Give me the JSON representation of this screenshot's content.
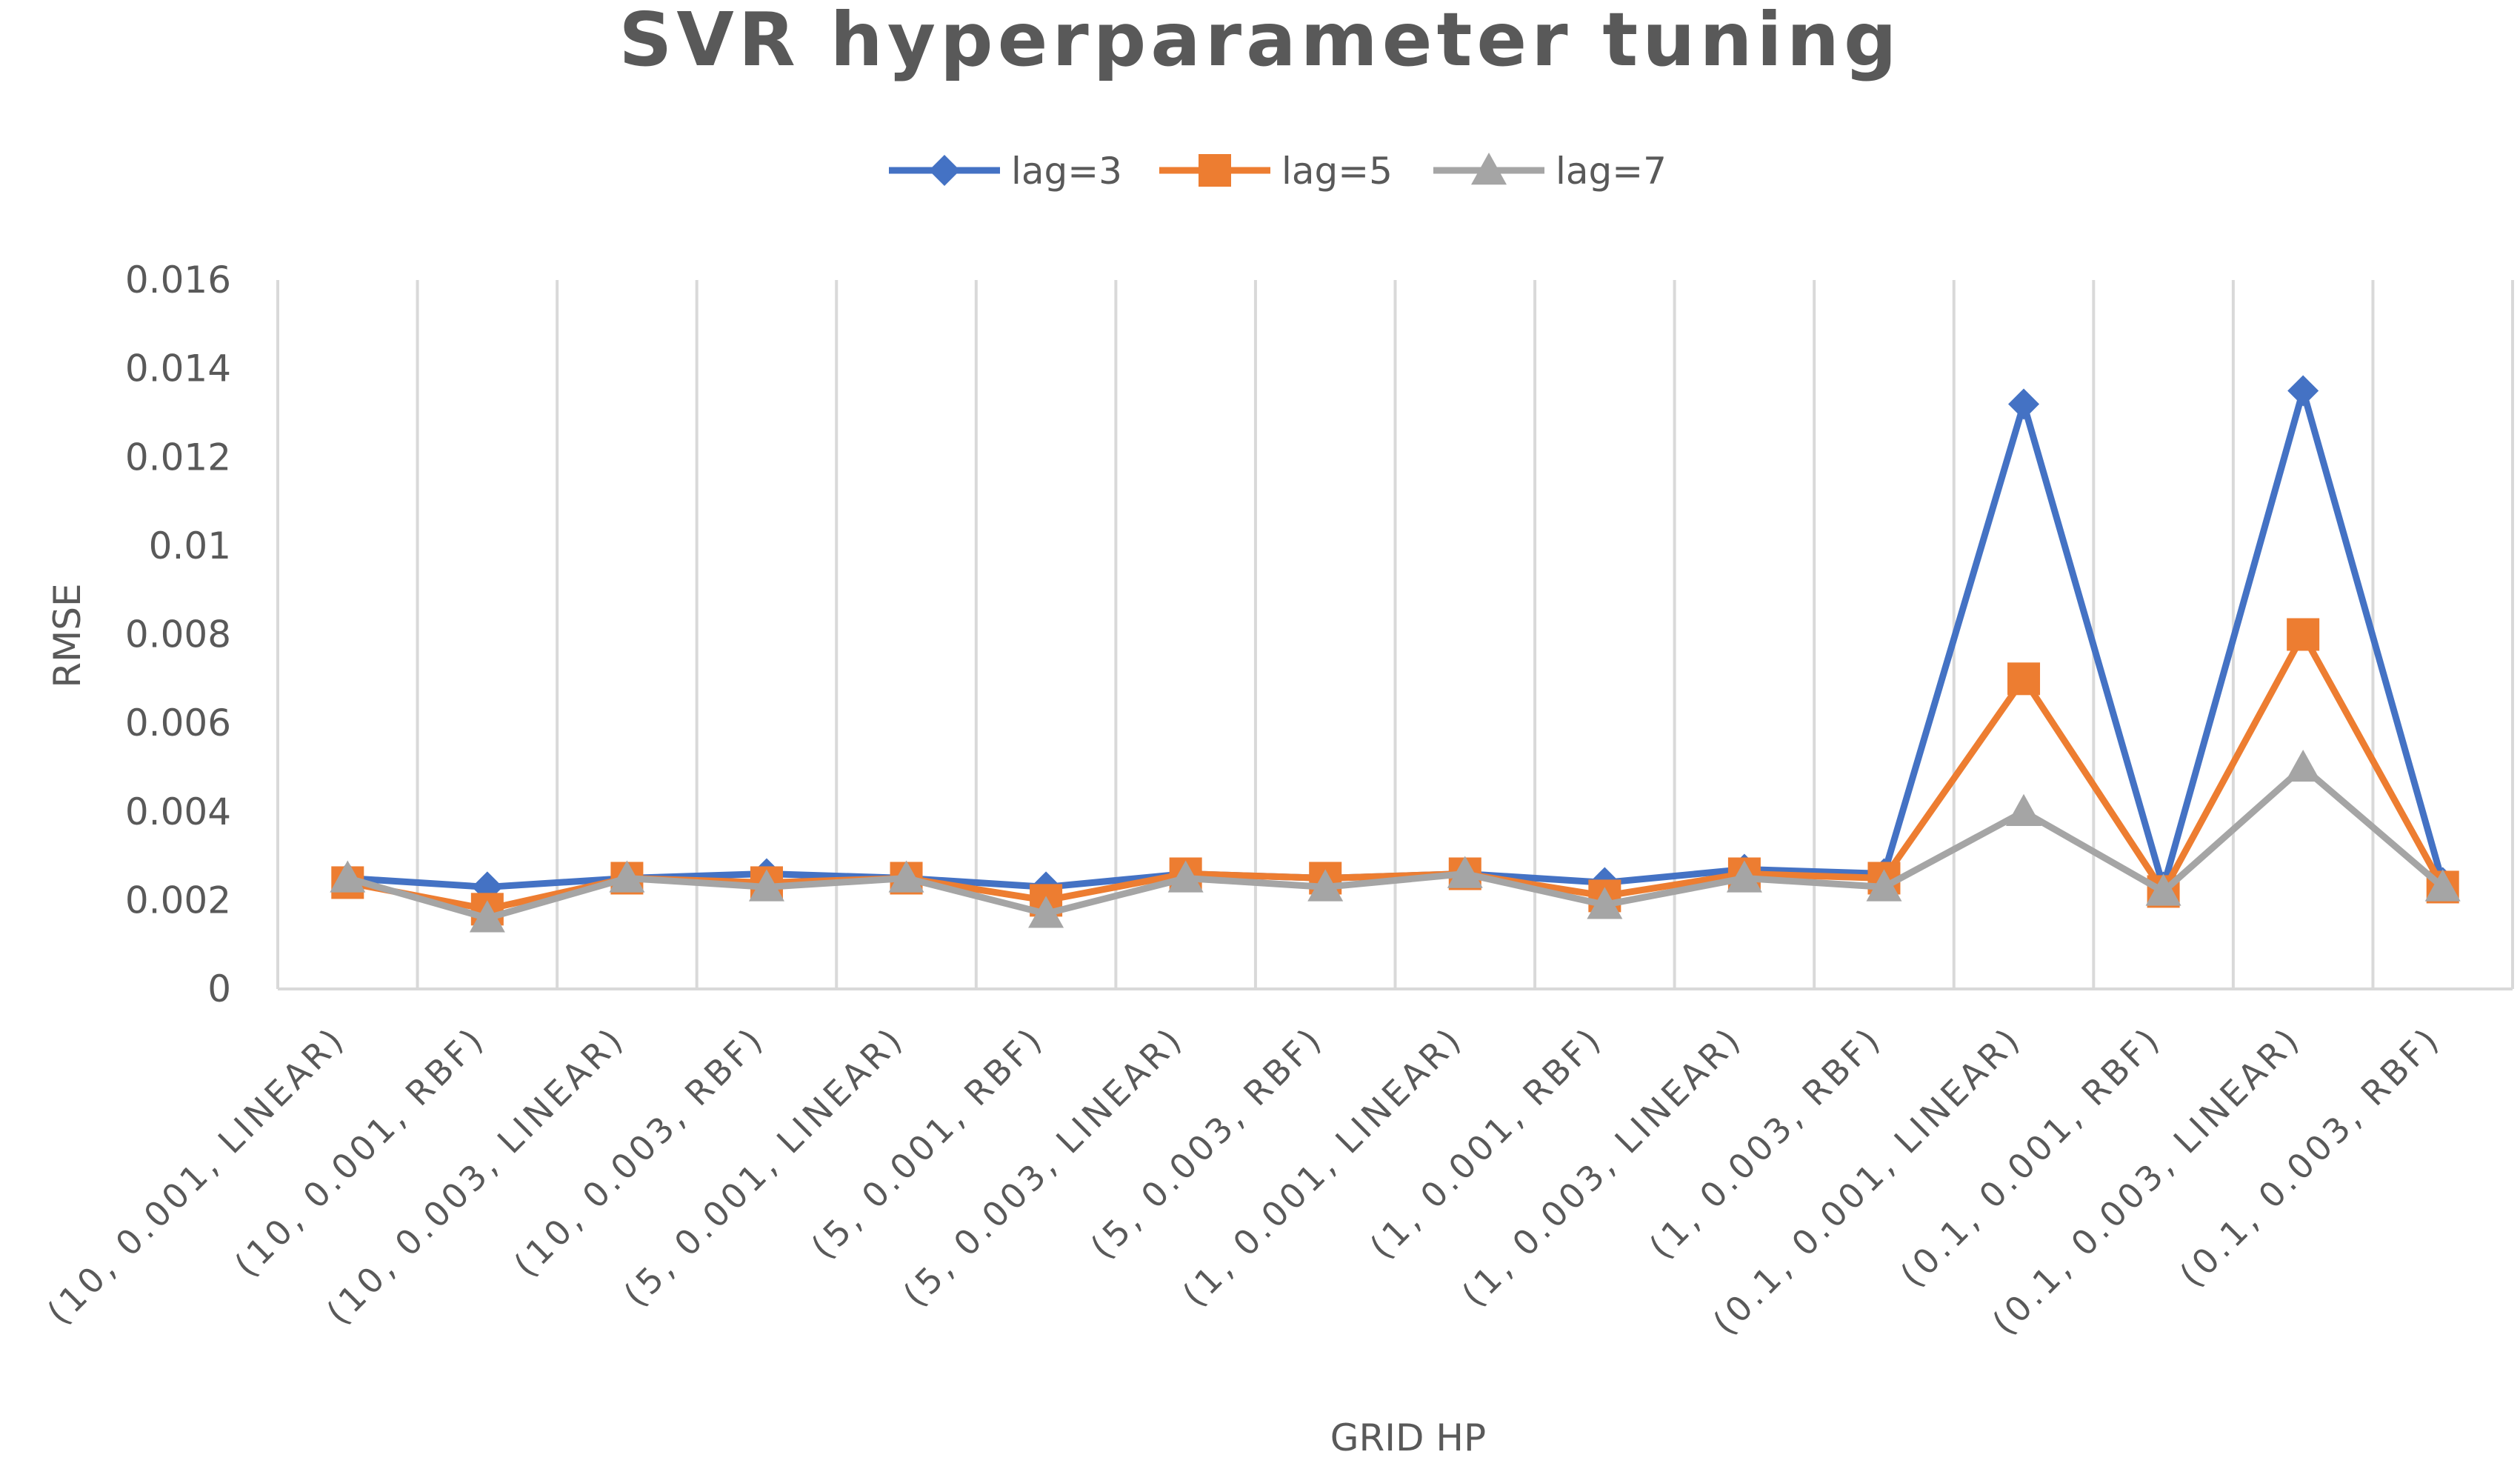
{
  "chart_data": {
    "type": "line",
    "title": "SVR hyperparameter  tuning",
    "xlabel": "GRID HP",
    "ylabel": "RMSE",
    "ylim": [
      0,
      0.016
    ],
    "y_ticks": [
      "0",
      "0.002",
      "0.004",
      "0.006",
      "0.008",
      "0.01",
      "0.012",
      "0.014",
      "0.016"
    ],
    "y_tick_values": [
      0,
      0.002,
      0.004,
      0.006,
      0.008,
      0.01,
      0.012,
      0.014,
      0.016
    ],
    "grid": "vertical",
    "legend_position": "top-center",
    "categories": [
      "(10, 0.001, LINEAR)",
      "(10, 0.001, RBF)",
      "(10, 0.003, LINEAR)",
      "(10, 0.003, RBF)",
      "(5, 0.001, LINEAR)",
      "(5, 0.001, RBF)",
      "(5, 0.003, LINEAR)",
      "(5, 0.003, RBF)",
      "(1, 0.001, LINEAR)",
      "(1, 0.001, RBF)",
      "(1, 0.003, LINEAR)",
      "(1, 0.003, RBF)",
      "(0.1, 0.001, LINEAR)",
      "(0.1, 0.001, RBF)",
      "(0.1, 0.003, LINEAR)",
      "(0.1, 0.003, RBF)"
    ],
    "series": [
      {
        "name": "lag=3",
        "color": "#4472C4",
        "marker": "diamond",
        "values": [
          0.0025,
          0.0023,
          0.0025,
          0.0026,
          0.0025,
          0.0023,
          0.0026,
          0.0025,
          0.0026,
          0.0024,
          0.0027,
          0.0026,
          0.0132,
          0.0023,
          0.0135,
          0.0024
        ]
      },
      {
        "name": "lag=5",
        "color": "#ED7D31",
        "marker": "square",
        "values": [
          0.0024,
          0.0018,
          0.0025,
          0.0024,
          0.0025,
          0.002,
          0.0026,
          0.0025,
          0.0026,
          0.0021,
          0.0026,
          0.0025,
          0.007,
          0.0022,
          0.008,
          0.0023
        ]
      },
      {
        "name": "lag=7",
        "color": "#A5A5A5",
        "marker": "triangle",
        "values": [
          0.0025,
          0.0016,
          0.0025,
          0.0023,
          0.0025,
          0.0017,
          0.0025,
          0.0023,
          0.0026,
          0.0019,
          0.0025,
          0.0023,
          0.004,
          0.0022,
          0.005,
          0.0023
        ]
      }
    ]
  }
}
